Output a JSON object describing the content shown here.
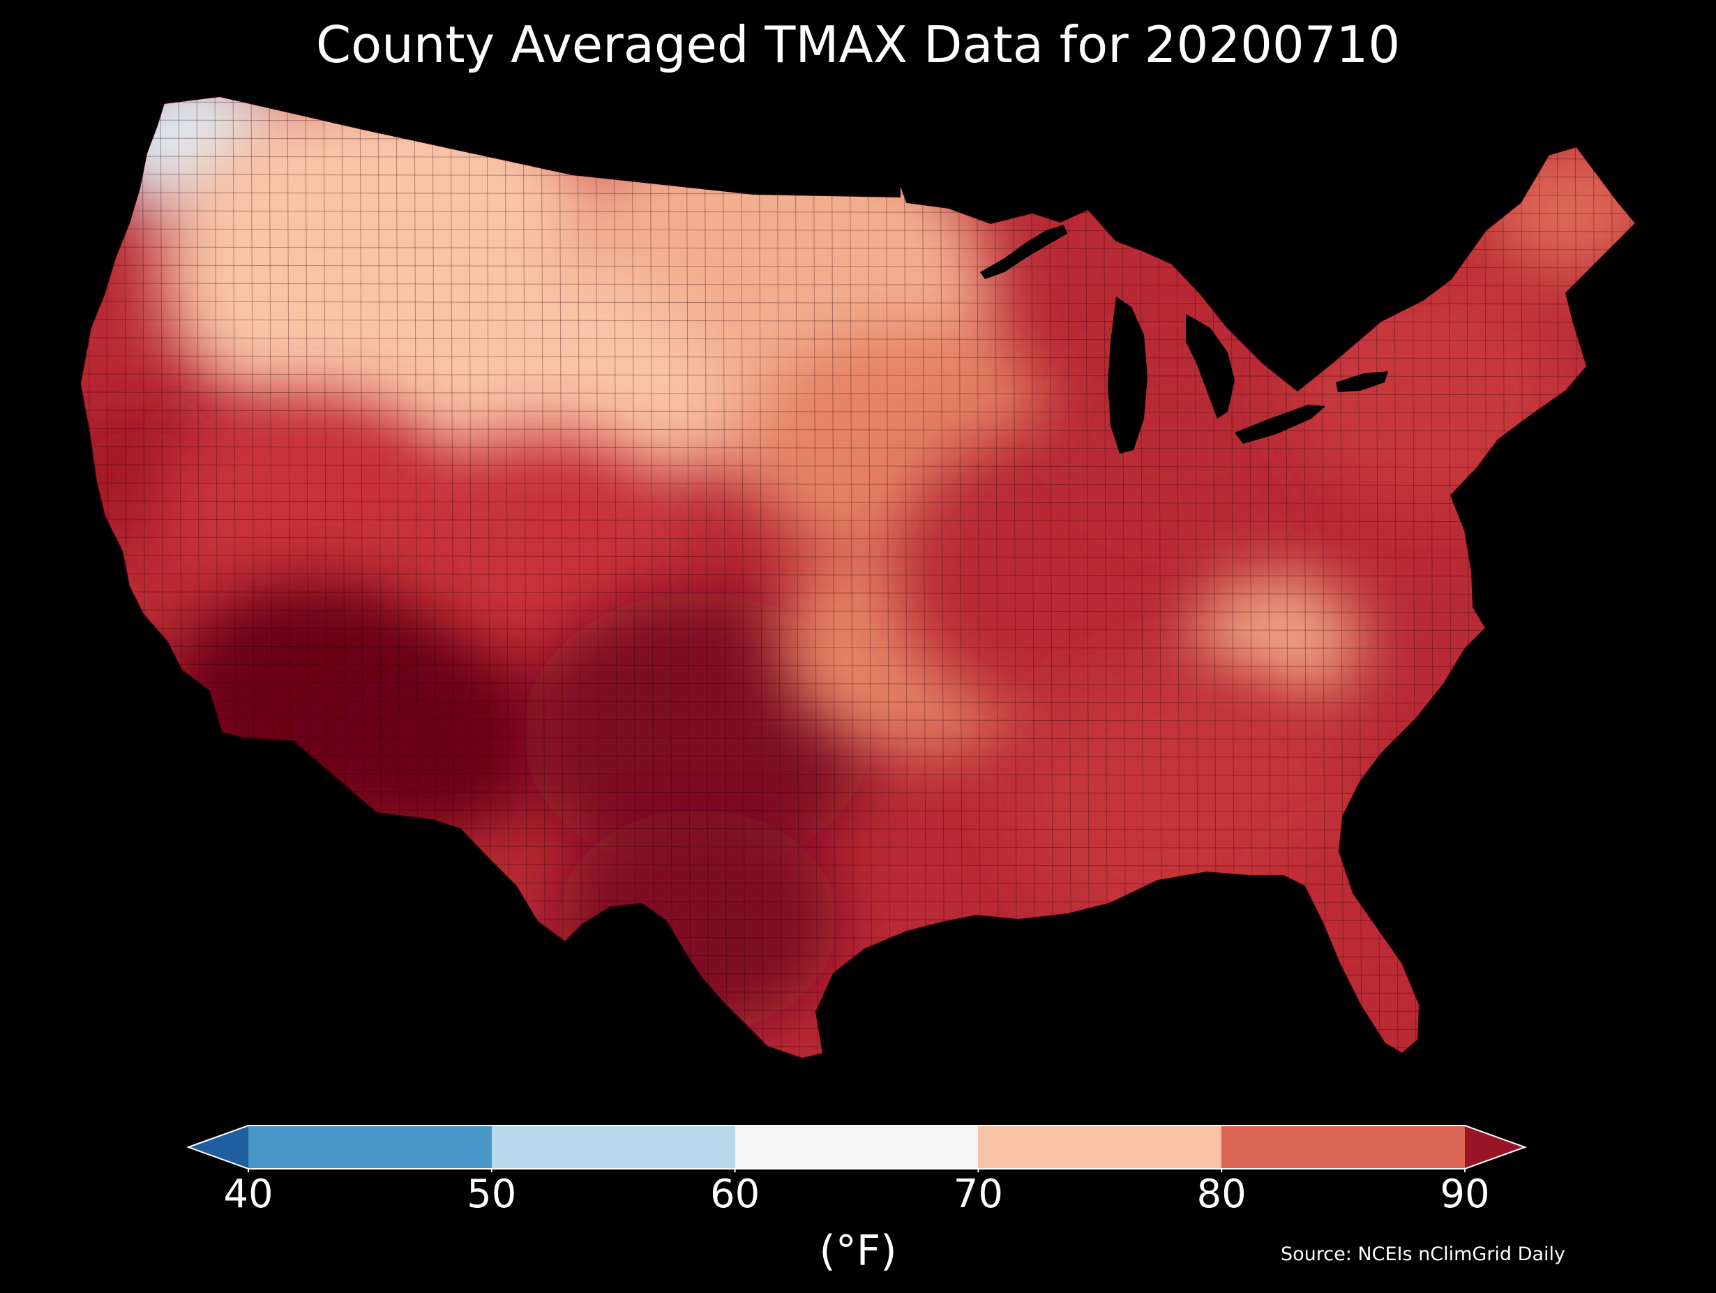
{
  "title": "County Averaged TMAX Data for 20200710",
  "colorbar": {
    "label": "(°F)",
    "ticks": [
      "40",
      "50",
      "60",
      "70",
      "80",
      "90"
    ],
    "bins": [
      {
        "range": [
          40,
          50
        ],
        "color": "#4a96c8"
      },
      {
        "range": [
          50,
          60
        ],
        "color": "#b7d8ea"
      },
      {
        "range": [
          60,
          70
        ],
        "color": "#f6f6f6"
      },
      {
        "range": [
          70,
          80
        ],
        "color": "#f8c2a6"
      },
      {
        "range": [
          80,
          90
        ],
        "color": "#dc6655"
      }
    ],
    "extend_low_color": "#1f5fa0",
    "extend_high_color": "#9a1428"
  },
  "source": "Source: NCEIs nClimGrid Daily",
  "map": {
    "region": "Contiguous United States",
    "variable": "TMAX",
    "units": "°F",
    "background_color": "#000000",
    "region_colors": {
      "pacific_northwest_coast": "#dbe9f3",
      "northern_rockies": "#f8c4a8",
      "northern_plains": "#f3ae8f",
      "california_valley": "#a11526",
      "great_basin": "#c8303a",
      "desert_southwest": "#6b0019",
      "texas_southern_plains": "#7d0a22",
      "central_plains": "#e58366",
      "midwest": "#b82a35",
      "appalachians": "#eea383",
      "southeast": "#c3343a",
      "florida": "#bd2a36",
      "northeast": "#c7373c",
      "maine": "#dd6756"
    }
  }
}
